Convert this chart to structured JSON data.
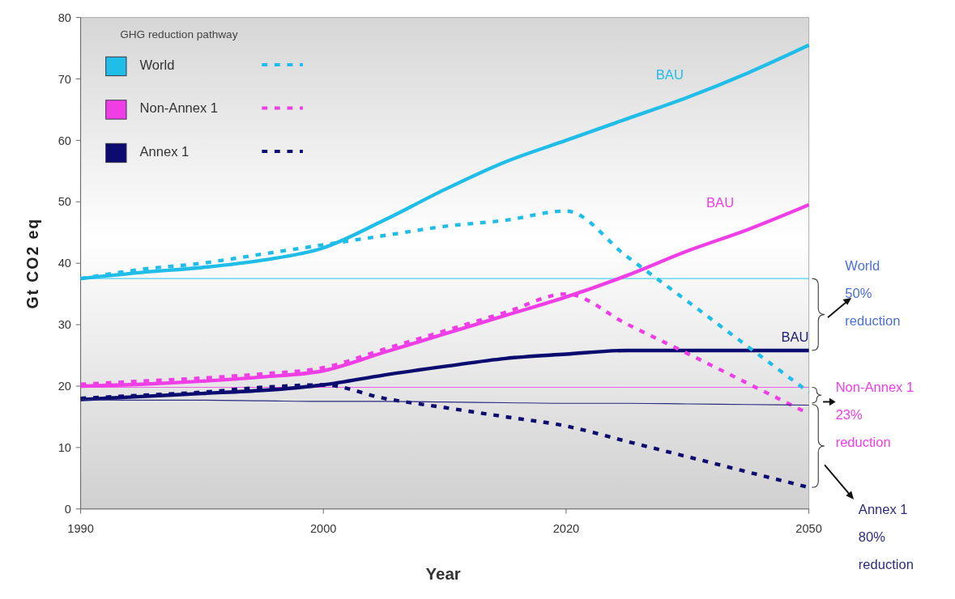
{
  "chart_data": {
    "type": "line",
    "xlabel": "Year",
    "ylabel": "Gt CO2 eq",
    "legend_title": "GHG reduction pathway",
    "legend": "top left",
    "grid": false,
    "categories": [
      "1990",
      null,
      null,
      null,
      "2000",
      null,
      null,
      null,
      "2020",
      null,
      null,
      null,
      "2050"
    ],
    "ylim": [
      0,
      80
    ],
    "yticks": [
      0,
      10,
      20,
      30,
      40,
      50,
      60,
      70,
      80
    ],
    "series": [
      {
        "name": "World",
        "color": "#1fbde8",
        "values": [
          37.5,
          38.5,
          39.3,
          40.5,
          42.5,
          47,
          52,
          56.5,
          60,
          63.5,
          67,
          71,
          75.5
        ]
      },
      {
        "name": "Non-Annex 1",
        "color": "#f03ee6",
        "values": [
          20,
          20.3,
          20.8,
          21.5,
          22.5,
          25.5,
          28.5,
          31.5,
          34.5,
          38,
          42,
          45.5,
          49.5
        ]
      },
      {
        "name": "Annex 1",
        "color": "#0b0b70",
        "values": [
          17.8,
          18.3,
          18.8,
          19.3,
          20.2,
          21.8,
          23.2,
          24.5,
          25.2,
          25.8,
          25.8,
          25.8,
          25.8
        ]
      },
      {
        "color": "#1fbde8",
        "line_style": "dashed",
        "values": [
          37.5,
          39,
          40,
          41.5,
          43,
          44.5,
          46,
          47,
          48.5,
          41.1,
          33.8,
          26.4,
          19
        ]
      },
      {
        "color": "#f03ee6",
        "line_style": "dashed",
        "values": [
          20.3,
          20.8,
          21.3,
          22,
          23,
          26,
          29,
          32,
          35,
          30.1,
          25.3,
          20.4,
          15.5
        ]
      },
      {
        "color": "#0b0b70",
        "line_style": "dashed",
        "values": [
          18,
          18.5,
          19,
          19.8,
          20.2,
          18,
          16.5,
          15,
          13.5,
          11,
          8.5,
          6,
          3.5
        ]
      },
      {
        "color": "#2a2a80",
        "values": [
          17.8,
          17.7,
          17.7,
          17.6,
          17.5,
          17.5,
          17.4,
          17.3,
          17.2,
          17.2,
          17.1,
          17,
          16.9
        ]
      }
    ],
    "ref_lines": [
      {
        "axis": "y",
        "value": 37.5,
        "color": "#4fd0f0"
      },
      {
        "axis": "y",
        "value": 19.8,
        "color": "#f060e8"
      }
    ],
    "annotations": [
      "BAU",
      "BAU",
      "BAU",
      "World\n50%\nreduction",
      "Non-Annex 1\n23%\nreduction",
      "Annex 1\n80%\nreduction"
    ]
  }
}
